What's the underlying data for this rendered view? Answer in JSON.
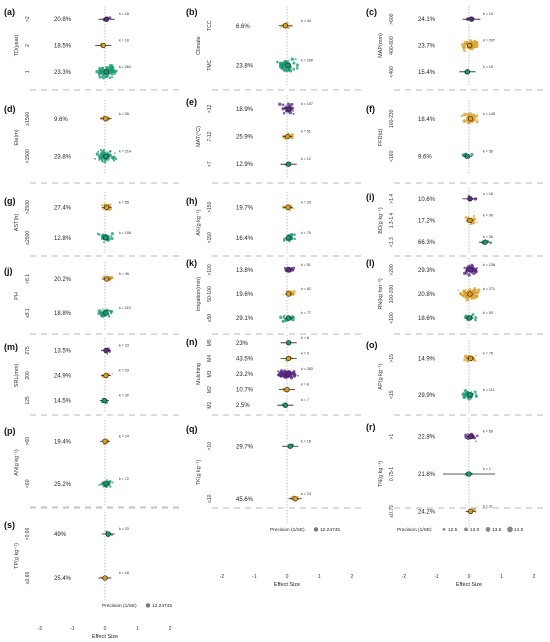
{
  "colors": {
    "purple": "#5b2a86",
    "gold": "#d9a02a",
    "green": "#1a9a72",
    "ring": "#222222",
    "zero_line": "#999999",
    "divider": "#c8c8c8"
  },
  "legend_items": {
    "size": {
      "title": "Precision (1/SE)",
      "entries": [
        "12.5",
        "13.0",
        "13.5",
        "14.0"
      ]
    },
    "single": {
      "title": "Precision (1/SE)",
      "entries": [
        "12.24745"
      ]
    }
  },
  "chart_data": [
    {
      "id": "a",
      "type": "scatter",
      "panel_label": "(a)",
      "ylabel": "TD(year)",
      "xlabel": "",
      "xlim": [
        -2,
        2
      ],
      "xticks": [
        "-2",
        "-1",
        "0",
        "1",
        "2"
      ],
      "rows": [
        {
          "cat": ">2",
          "pct": "20.8%",
          "k": "k = 18",
          "est": 0.05,
          "ci": [
            -0.2,
            0.3
          ],
          "color": "purple"
        },
        {
          "cat": "2",
          "pct": "18.5%",
          "k": "k = 10",
          "est": -0.05,
          "ci": [
            -0.3,
            0.2
          ],
          "color": "gold"
        },
        {
          "cat": "1",
          "pct": "23.3%",
          "k": "k = 263",
          "est": 0.04,
          "ci": [
            -0.02,
            0.1
          ],
          "color": "green"
        }
      ]
    },
    {
      "id": "b",
      "type": "scatter",
      "panel_label": "(b)",
      "ylabel": "Climate",
      "xlabel": "",
      "xlim": [
        -2,
        2
      ],
      "xticks": [
        "-2",
        "-1",
        "0",
        "1",
        "2"
      ],
      "rows": [
        {
          "cat": "TCC",
          "pct": "6.6%",
          "k": "k = 44",
          "est": -0.05,
          "ci": [
            -0.25,
            0.15
          ],
          "color": "gold"
        },
        {
          "cat": "TMC",
          "pct": "23.8%",
          "k": "k = 200",
          "est": 0.03,
          "ci": [
            -0.03,
            0.09
          ],
          "color": "green"
        }
      ]
    },
    {
      "id": "c",
      "type": "scatter",
      "panel_label": "(c)",
      "ylabel": "MAP(mm)",
      "xlabel": "",
      "xlim": [
        -2,
        2
      ],
      "xticks": [
        "-2",
        "-1",
        "0",
        "1",
        "2"
      ],
      "rows": [
        {
          "cat": ">600",
          "pct": "24.1%",
          "k": "k = 10",
          "est": 0.08,
          "ci": [
            -0.2,
            0.35
          ],
          "color": "purple"
        },
        {
          "cat": "400-600",
          "pct": "23.7%",
          "k": "k = 207",
          "est": 0.02,
          "ci": [
            -0.05,
            0.09
          ],
          "color": "gold"
        },
        {
          "cat": "<400",
          "pct": "15.4%",
          "k": "k = 15",
          "est": -0.05,
          "ci": [
            -0.3,
            0.2
          ],
          "color": "green"
        }
      ]
    },
    {
      "id": "d",
      "type": "scatter",
      "panel_label": "(d)",
      "ylabel": "Ele(m)",
      "xlabel": "",
      "xlim": [
        -2,
        2
      ],
      "xticks": [
        "-2",
        "-1",
        "0",
        "1",
        "2"
      ],
      "rows": [
        {
          "cat": "≥1500",
          "pct": "9.6%",
          "k": "k = 35",
          "est": 0.02,
          "ci": [
            -0.15,
            0.2
          ],
          "color": "gold"
        },
        {
          "cat": "<1500",
          "pct": "23.8%",
          "k": "k = 214",
          "est": 0.03,
          "ci": [
            -0.03,
            0.09
          ],
          "color": "green"
        }
      ]
    },
    {
      "id": "e",
      "type": "scatter",
      "panel_label": "(e)",
      "ylabel": "MAT(°C)",
      "xlabel": "",
      "xlim": [
        -2,
        2
      ],
      "xticks": [
        "-2",
        "-1",
        "0",
        "1",
        "2"
      ],
      "rows": [
        {
          "cat": ">12",
          "pct": "18.9%",
          "k": "k = 107",
          "est": 0.05,
          "ci": [
            -0.05,
            0.15
          ],
          "color": "purple"
        },
        {
          "cat": "7-12",
          "pct": "25.9%",
          "k": "k = 51",
          "est": 0.02,
          "ci": [
            -0.12,
            0.16
          ],
          "color": "gold"
        },
        {
          "cat": "<7",
          "pct": "12.9%",
          "k": "k = 12",
          "est": 0.05,
          "ci": [
            -0.2,
            0.3
          ],
          "color": "green"
        }
      ]
    },
    {
      "id": "f",
      "type": "scatter",
      "panel_label": "(f)",
      "ylabel": "FFD(d)",
      "xlabel": "",
      "xlim": [
        -2,
        2
      ],
      "xticks": [
        "-2",
        "-1",
        "0",
        "1",
        "2"
      ],
      "rows": [
        {
          "cat": "160-230",
          "pct": "18.4%",
          "k": "k = 145",
          "est": 0.05,
          "ci": [
            -0.02,
            0.12
          ],
          "color": "gold"
        },
        {
          "cat": "<160",
          "pct": "9.6%",
          "k": "k = 35",
          "est": -0.05,
          "ci": [
            -0.2,
            0.1
          ],
          "color": "green"
        }
      ]
    },
    {
      "id": "g",
      "type": "scatter",
      "panel_label": "(g)",
      "ylabel": "AST(h)",
      "xlabel": "",
      "xlim": [
        -2,
        2
      ],
      "xticks": [
        "-2",
        "-1",
        "0",
        "1",
        "2"
      ],
      "rows": [
        {
          "cat": ">2500",
          "pct": "27.4%",
          "k": "k = 55",
          "est": 0.05,
          "ci": [
            -0.1,
            0.2
          ],
          "color": "gold"
        },
        {
          "cat": "≤2500",
          "pct": "12.8%",
          "k": "k = 106",
          "est": 0.02,
          "ci": [
            -0.06,
            0.1
          ],
          "color": "green"
        }
      ]
    },
    {
      "id": "h",
      "type": "scatter",
      "panel_label": "(h)",
      "ylabel": "AK(g kg⁻¹)",
      "xlabel": "",
      "xlim": [
        -2,
        2
      ],
      "xticks": [
        "-2",
        "-1",
        "0",
        "1",
        "2"
      ],
      "rows": [
        {
          "cat": ">150",
          "pct": "19.7%",
          "k": "k = 33",
          "est": 0.03,
          "ci": [
            -0.12,
            0.18
          ],
          "color": "gold"
        },
        {
          "cat": "<150",
          "pct": "16.4%",
          "k": "k = 79",
          "est": 0.05,
          "ci": [
            -0.05,
            0.15
          ],
          "color": "green"
        }
      ]
    },
    {
      "id": "i",
      "type": "scatter",
      "panel_label": "(i)",
      "ylabel": "BD(g kg⁻¹)",
      "xlabel": "",
      "xlim": [
        -2,
        2
      ],
      "xticks": [
        "-2",
        "-1",
        "0",
        "1",
        "2"
      ],
      "rows": [
        {
          "cat": ">1.4",
          "pct": "10.6%",
          "k": "k = 16",
          "est": 0.03,
          "ci": [
            -0.2,
            0.25
          ],
          "color": "purple"
        },
        {
          "cat": "1.3-1.4",
          "pct": "17.2%",
          "k": "k = 90",
          "est": 0.03,
          "ci": [
            -0.06,
            0.12
          ],
          "color": "gold"
        },
        {
          "cat": "<1.3",
          "pct": "66.3%",
          "k": "k = 26",
          "est": 0.5,
          "ci": [
            0.3,
            0.7
          ],
          "color": "green"
        }
      ]
    },
    {
      "id": "j",
      "type": "scatter",
      "panel_label": "(j)",
      "ylabel": "PH",
      "xlabel": "",
      "xlim": [
        -2,
        2
      ],
      "xticks": [
        "-2",
        "-1",
        "0",
        "1",
        "2"
      ],
      "rows": [
        {
          "cat": ">8.1",
          "pct": "20.2%",
          "k": "k = 49",
          "est": 0.05,
          "ci": [
            -0.1,
            0.2
          ],
          "color": "gold"
        },
        {
          "cat": "≤8.1",
          "pct": "18.8%",
          "k": "k = 110",
          "est": 0.03,
          "ci": [
            -0.05,
            0.11
          ],
          "color": "green"
        }
      ]
    },
    {
      "id": "k",
      "type": "scatter",
      "panel_label": "(k)",
      "ylabel": "Irrigation(mm)",
      "xlabel": "",
      "xlim": [
        -2,
        2
      ],
      "xticks": [
        "-2",
        "-1",
        "0",
        "1",
        "2"
      ],
      "rows": [
        {
          "cat": ">100",
          "pct": "13.8%",
          "k": "k = 51",
          "est": 0.05,
          "ci": [
            -0.08,
            0.18
          ],
          "color": "purple"
        },
        {
          "cat": "50-100",
          "pct": "19.6%",
          "k": "k = 62",
          "est": 0.05,
          "ci": [
            -0.06,
            0.16
          ],
          "color": "gold"
        },
        {
          "cat": "≤50",
          "pct": "29.1%",
          "k": "k = 77",
          "est": 0.05,
          "ci": [
            -0.05,
            0.15
          ],
          "color": "green"
        }
      ]
    },
    {
      "id": "l",
      "type": "scatter",
      "panel_label": "(l)",
      "ylabel": "RN(kg hm⁻²)",
      "xlabel": "",
      "xlim": [
        -2,
        2
      ],
      "xticks": [
        "-2",
        "-1",
        "0",
        "1",
        "2"
      ],
      "rows": [
        {
          "cat": ">200",
          "pct": "29.3%",
          "k": "k = 138",
          "est": 0.05,
          "ci": [
            -0.02,
            0.12
          ],
          "color": "purple"
        },
        {
          "cat": "100-200",
          "pct": "20.8%",
          "k": "k = 271",
          "est": 0.03,
          "ci": [
            -0.02,
            0.08
          ],
          "color": "gold"
        },
        {
          "cat": "<100",
          "pct": "18.6%",
          "k": "k = 53",
          "est": 0.02,
          "ci": [
            -0.1,
            0.14
          ],
          "color": "green"
        }
      ]
    },
    {
      "id": "m",
      "type": "scatter",
      "panel_label": "(m)",
      "ylabel": "SRL(mm)",
      "xlabel": "",
      "xlim": [
        -2,
        2
      ],
      "xticks": [
        "-2",
        "-1",
        "0",
        "1",
        "2"
      ],
      "rows": [
        {
          "cat": "275",
          "pct": "13.5%",
          "k": "k = 23",
          "est": 0.03,
          "ci": [
            -0.12,
            0.18
          ],
          "color": "purple"
        },
        {
          "cat": "200",
          "pct": "24.9%",
          "k": "k = 23",
          "est": 0.03,
          "ci": [
            -0.12,
            0.18
          ],
          "color": "gold"
        },
        {
          "cat": "125",
          "pct": "14.5%",
          "k": "k = 30",
          "est": -0.02,
          "ci": [
            -0.16,
            0.12
          ],
          "color": "green"
        }
      ]
    },
    {
      "id": "n",
      "type": "scatter",
      "panel_label": "(n)",
      "ylabel": "Mulching",
      "xlabel": "",
      "xlim": [
        -2,
        2
      ],
      "xticks": [
        "-2",
        "-1",
        "0",
        "1",
        "2"
      ],
      "rows": [
        {
          "cat": "M5",
          "pct": "23%",
          "k": "k = 8",
          "est": 0.05,
          "ci": [
            -0.2,
            0.3
          ],
          "color": "green"
        },
        {
          "cat": "M4",
          "pct": "43.5%",
          "k": "k = 9",
          "est": 0.05,
          "ci": [
            -0.2,
            0.3
          ],
          "color": "gold"
        },
        {
          "cat": "M3",
          "pct": "23.2%",
          "k": "k = 283",
          "est": 0.03,
          "ci": [
            -0.03,
            0.09
          ],
          "color": "purple"
        },
        {
          "cat": "M2",
          "pct": "10.7%",
          "k": "k = 8",
          "est": 0.0,
          "ci": [
            -0.25,
            0.25
          ],
          "color": "gold"
        },
        {
          "cat": "M1",
          "pct": "2.5%",
          "k": "k = 7",
          "est": -0.05,
          "ci": [
            -0.3,
            0.2
          ],
          "color": "green"
        }
      ]
    },
    {
      "id": "o",
      "type": "scatter",
      "panel_label": "(o)",
      "ylabel": "AP(g kg⁻¹)",
      "xlabel": "",
      "xlim": [
        -2,
        2
      ],
      "xticks": [
        "-2",
        "-1",
        "0",
        "1",
        "2"
      ],
      "rows": [
        {
          "cat": ">15",
          "pct": "14.9%",
          "k": "k = 75",
          "est": 0.05,
          "ci": [
            -0.06,
            0.16
          ],
          "color": "gold"
        },
        {
          "cat": "<15",
          "pct": "29.9%",
          "k": "k = 111",
          "est": 0.03,
          "ci": [
            -0.05,
            0.11
          ],
          "color": "green"
        }
      ]
    },
    {
      "id": "p",
      "type": "scatter",
      "panel_label": "(p)",
      "ylabel": "AN(g kg⁻¹)",
      "xlabel": "",
      "xlim": [
        -2,
        2
      ],
      "xticks": [
        "-2",
        "-1",
        "0",
        "1",
        "2"
      ],
      "rows": [
        {
          "cat": ">60",
          "pct": "19.4%",
          "k": "k = 24",
          "est": 0.0,
          "ci": [
            -0.15,
            0.15
          ],
          "color": "gold"
        },
        {
          "cat": "<60",
          "pct": "25.2%",
          "k": "k = 72",
          "est": 0.03,
          "ci": [
            -0.07,
            0.13
          ],
          "color": "green"
        }
      ]
    },
    {
      "id": "q",
      "type": "scatter",
      "panel_label": "(q)",
      "ylabel": "TK(g kg⁻¹)",
      "xlabel": "Effect Size",
      "xlim": [
        -2,
        2
      ],
      "xticks": [
        "-2",
        "-1",
        "0",
        "1",
        "2"
      ],
      "rows": [
        {
          "cat": ">10",
          "pct": "29.7%",
          "k": "k = 15",
          "est": 0.1,
          "ci": [
            -0.15,
            0.35
          ],
          "color": "green"
        },
        {
          "cat": "≤10",
          "pct": "45.6%",
          "k": "k = 24",
          "est": 0.25,
          "ci": [
            0.05,
            0.45
          ],
          "color": "gold"
        }
      ]
    },
    {
      "id": "r",
      "type": "scatter",
      "panel_label": "(r)",
      "ylabel": "TN(g kg⁻¹)",
      "xlabel": "Effect Size",
      "xlim": [
        -2,
        2
      ],
      "xticks": [
        "-2",
        "-1",
        "0",
        "1",
        "2"
      ],
      "rows": [
        {
          "cat": ">1",
          "pct": "22.8%",
          "k": "k = 59",
          "est": 0.05,
          "ci": [
            -0.06,
            0.16
          ],
          "color": "purple"
        },
        {
          "cat": "0.75-1",
          "pct": "21.8%",
          "k": "k = 1",
          "est": 0.0,
          "ci": [
            -0.8,
            0.8
          ],
          "color": "green"
        },
        {
          "cat": "≤0.75",
          "pct": "24.2%",
          "k": "k = 21",
          "est": 0.05,
          "ci": [
            -0.1,
            0.2
          ],
          "color": "gold"
        }
      ]
    },
    {
      "id": "s",
      "type": "scatter",
      "panel_label": "(s)",
      "ylabel": "TP(g kg⁻¹)",
      "xlabel": "Effect Size",
      "xlim": [
        -2,
        2
      ],
      "xticks": [
        "-2",
        "-1",
        "0",
        "1",
        "2"
      ],
      "rows": [
        {
          "cat": ">0.66",
          "pct": "49%",
          "k": "k = 23",
          "est": 0.1,
          "ci": [
            -0.1,
            0.3
          ],
          "color": "green"
        },
        {
          "cat": "≤0.66",
          "pct": "25.4%",
          "k": "k = 18",
          "est": 0.0,
          "ci": [
            -0.2,
            0.2
          ],
          "color": "gold"
        }
      ]
    }
  ]
}
